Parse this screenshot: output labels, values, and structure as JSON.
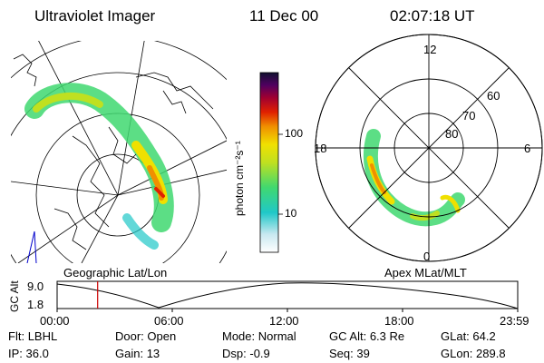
{
  "header": {
    "instrument": "Ultraviolet Imager",
    "date": "11 Dec 00",
    "time": "02:07:18 UT"
  },
  "colorbar": {
    "unit_label": "photon cm⁻²s⁻¹",
    "tick_high": "100",
    "tick_low": "10"
  },
  "left_panel": {
    "label": "Geographic Lat/Lon"
  },
  "right_panel": {
    "label": "Apex MLat/MLT",
    "mlt_labels": {
      "top": "12",
      "left": "18",
      "right": "6",
      "bottom": "0"
    },
    "lat_labels": [
      "60",
      "70",
      "80"
    ]
  },
  "altitude_plot": {
    "ylabel": "GC Alt",
    "y_high": "9.0",
    "y_low": "1.8",
    "time_ticks": [
      "00:00",
      "06:00",
      "12:00",
      "18:00",
      "23:59"
    ],
    "current_time_fraction": 0.088,
    "marker_color": "#cc0000"
  },
  "metadata": {
    "row1": [
      {
        "label": "Flt:",
        "value": "LBHL"
      },
      {
        "label": "Door:",
        "value": "Open"
      },
      {
        "label": "Mode:",
        "value": "Normal"
      },
      {
        "label": "GC Alt:",
        "value": "6.3 Re"
      },
      {
        "label": "GLat:",
        "value": "64.2"
      }
    ],
    "row2": [
      {
        "label": "IP:",
        "value": "36.0"
      },
      {
        "label": "Gain:",
        "value": "13"
      },
      {
        "label": "Dsp:",
        "value": "-0.9"
      },
      {
        "label": "Seq:",
        "value": "39"
      },
      {
        "label": "GLon:",
        "value": "289.8"
      }
    ]
  }
}
